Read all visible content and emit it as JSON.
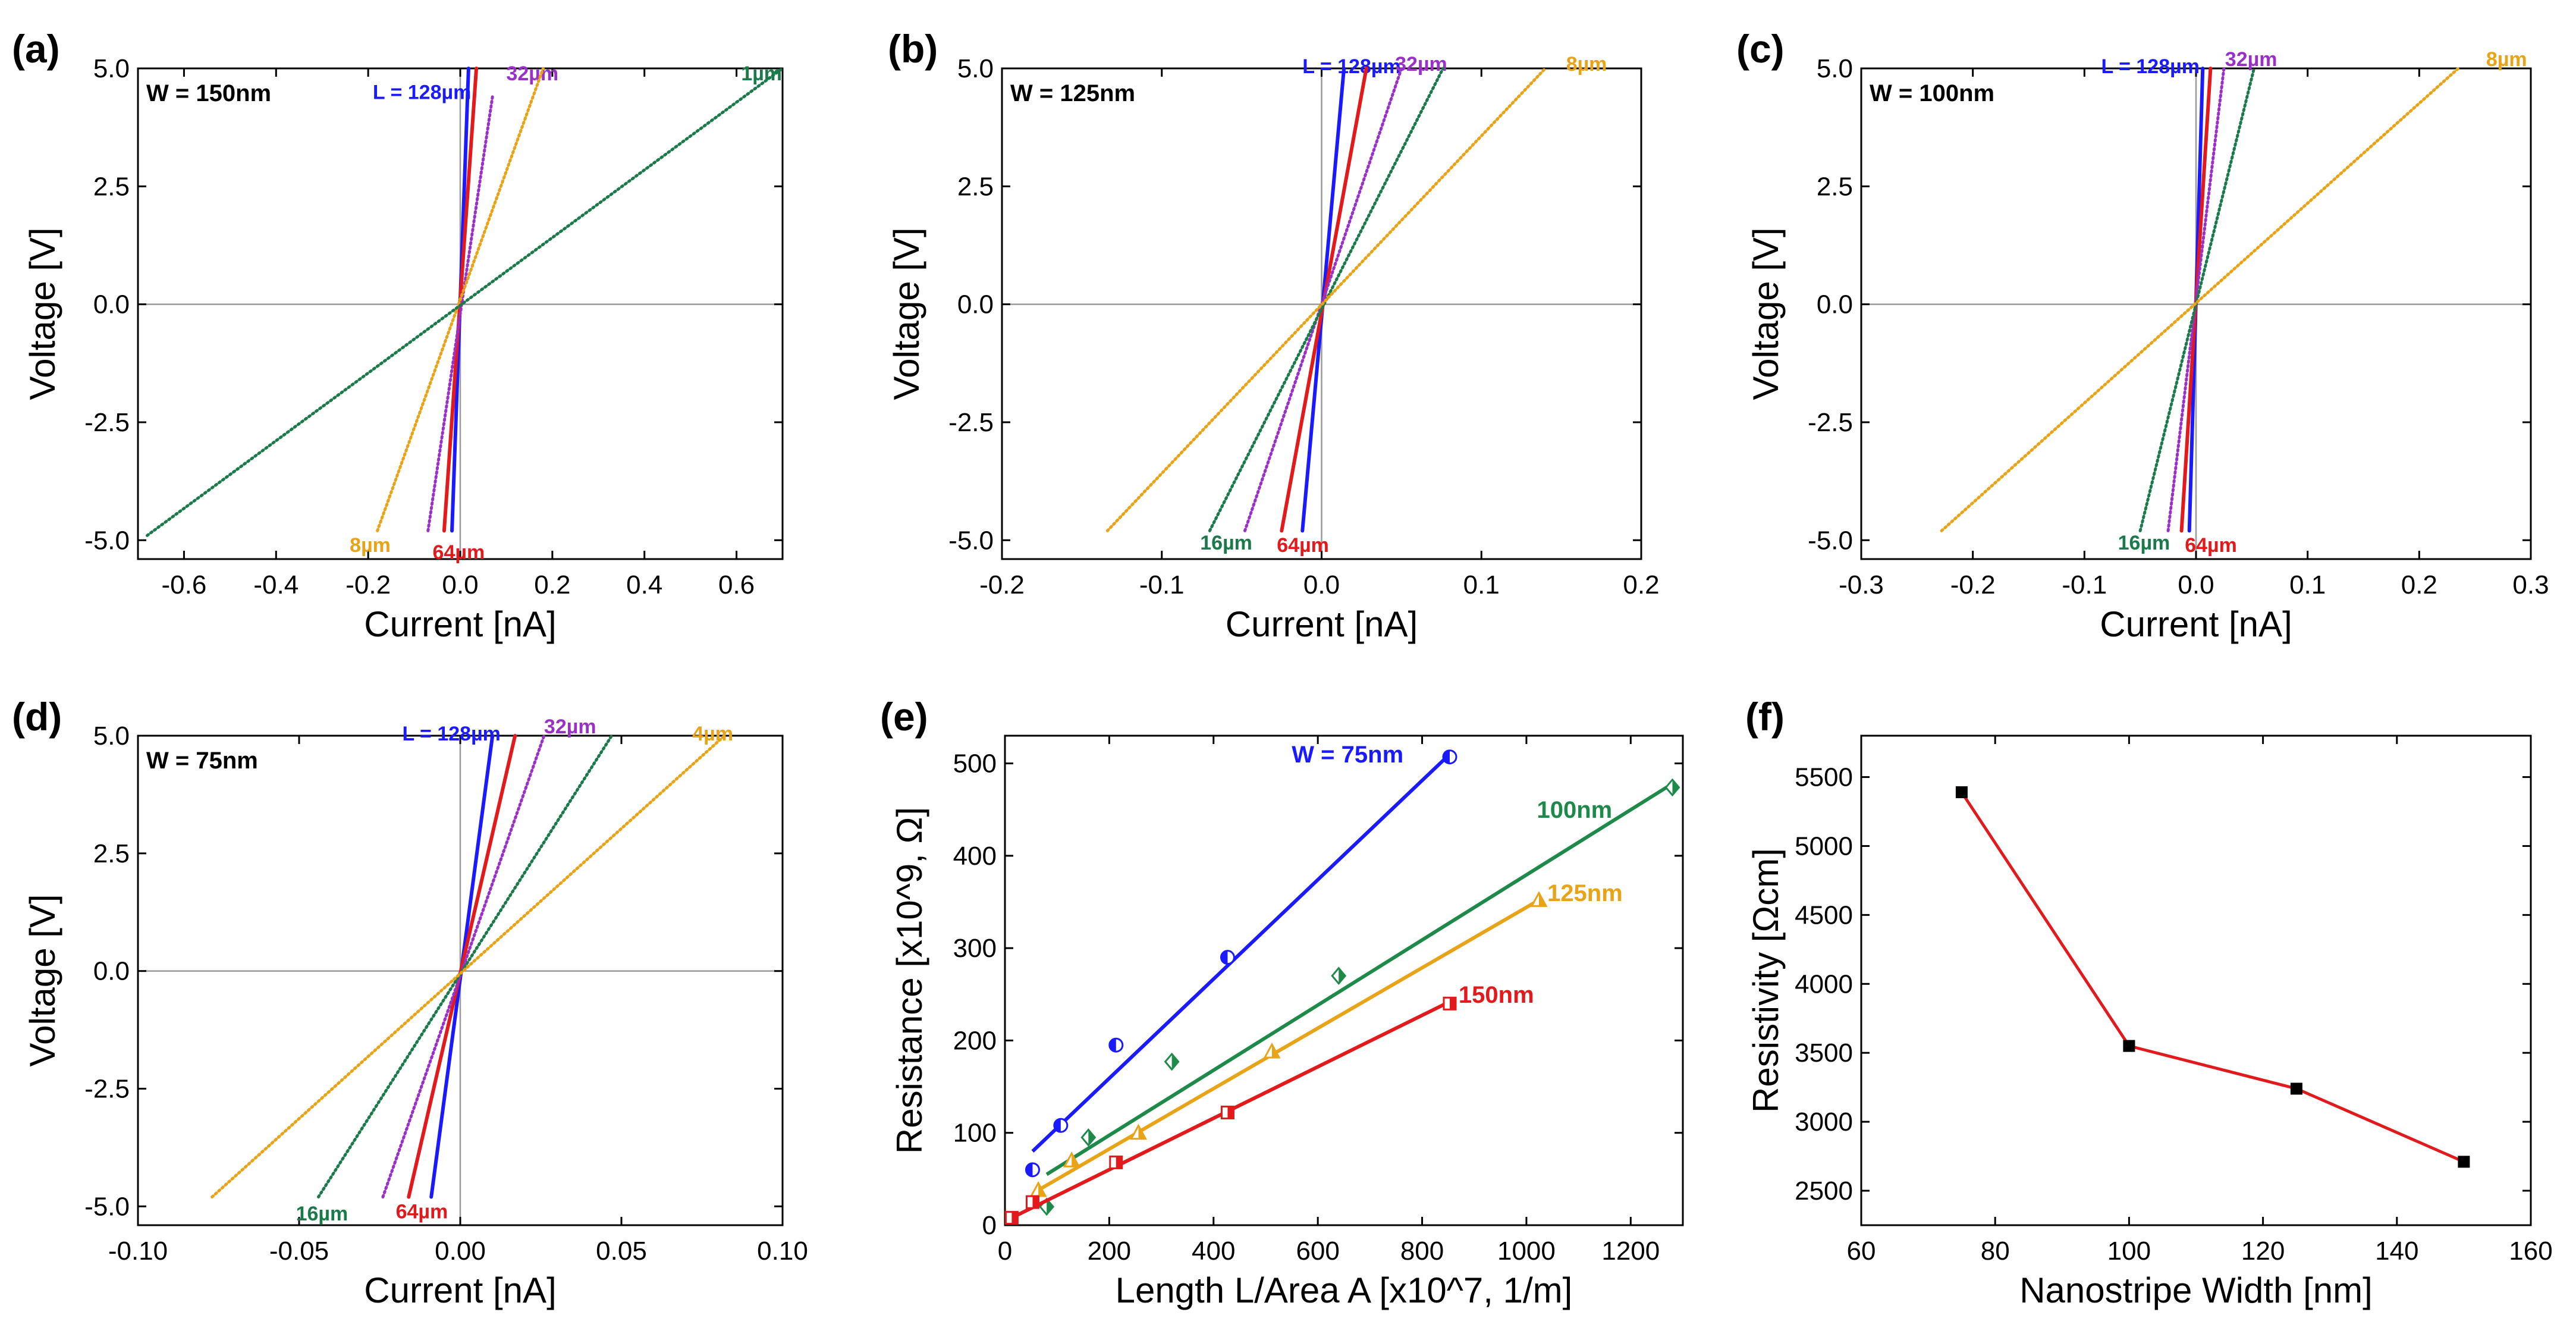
{
  "chart_data": [
    {
      "id": "a",
      "type": "line",
      "panel_label": "(a)",
      "title": "W = 150nm",
      "xlabel": "Current [nA]",
      "ylabel": "Voltage [V]",
      "xlim": [
        -0.7,
        0.7
      ],
      "ylim": [
        -5.4,
        5.0
      ],
      "xticks": [
        -0.6,
        -0.4,
        -0.2,
        0.0,
        0.2,
        0.4,
        0.6
      ],
      "xtick_labels": [
        "-0.6",
        "-0.4",
        "-0.2",
        "0.0",
        "0.2",
        "0.4",
        "0.6"
      ],
      "yticks": [
        -5,
        -2.5,
        0,
        2.5,
        5
      ],
      "ytick_labels": [
        "-5.0",
        "-2.5",
        "0.0",
        "2.5",
        "5.0"
      ],
      "series": [
        {
          "name": "L = 128µm",
          "label": "L = 128µm",
          "color": "#1a1aff",
          "style": "solid",
          "x": [
            -0.018,
            0.018
          ],
          "y": [
            -4.8,
            5.0
          ],
          "label_at": [
            -0.19,
            4.5
          ]
        },
        {
          "name": "64µm",
          "label": "64µm",
          "color": "#e31a1c",
          "style": "solid",
          "x": [
            -0.035,
            0.035
          ],
          "y": [
            -4.8,
            5.0
          ],
          "label_at": [
            -0.06,
            -5.25
          ]
        },
        {
          "name": "32µm",
          "label": "32µm",
          "color": "#9b30c8",
          "style": "dotted",
          "x": [
            -0.07,
            0.07
          ],
          "y": [
            -4.8,
            4.4
          ],
          "label_at": [
            0.1,
            4.9
          ]
        },
        {
          "name": "8µm",
          "label": "8µm",
          "color": "#e8a317",
          "style": "dotted",
          "x": [
            -0.18,
            0.18
          ],
          "y": [
            -4.8,
            5.0
          ],
          "label_at": [
            -0.24,
            -5.1
          ]
        },
        {
          "name": "1µm",
          "label": "1µm",
          "color": "#1a7a4a",
          "style": "dotted",
          "x": [
            -0.68,
            0.7
          ],
          "y": [
            -4.9,
            5.0
          ],
          "label_at": [
            0.61,
            4.9
          ]
        }
      ]
    },
    {
      "id": "b",
      "type": "line",
      "panel_label": "(b)",
      "title": "W = 125nm",
      "xlabel": "Current [nA]",
      "ylabel": "Voltage [V]",
      "xlim": [
        -0.2,
        0.2
      ],
      "ylim": [
        -5.4,
        5.0
      ],
      "xticks": [
        -0.2,
        -0.1,
        0.0,
        0.1,
        0.2
      ],
      "xtick_labels": [
        "-0.2",
        "-0.1",
        "0.0",
        "0.1",
        "0.2"
      ],
      "yticks": [
        -5,
        -2.5,
        0,
        2.5,
        5
      ],
      "ytick_labels": [
        "-5.0",
        "-2.5",
        "0.0",
        "2.5",
        "5.0"
      ],
      "series": [
        {
          "name": "L = 128µm",
          "label": "L = 128µm",
          "color": "#1a1aff",
          "style": "solid",
          "x": [
            -0.012,
            0.014
          ],
          "y": [
            -4.8,
            5.0
          ],
          "label_at": [
            -0.012,
            5.05
          ]
        },
        {
          "name": "64µm",
          "label": "64µm",
          "color": "#e31a1c",
          "style": "solid",
          "x": [
            -0.025,
            0.028
          ],
          "y": [
            -4.8,
            5.0
          ],
          "label_at": [
            -0.028,
            -5.1
          ]
        },
        {
          "name": "32µm",
          "label": "32µm",
          "color": "#9b30c8",
          "style": "dotted",
          "x": [
            -0.048,
            0.05
          ],
          "y": [
            -4.8,
            5.0
          ],
          "label_at": [
            0.046,
            5.1
          ]
        },
        {
          "name": "16µm",
          "label": "16µm",
          "color": "#1a7a4a",
          "style": "dotted",
          "x": [
            -0.07,
            0.076
          ],
          "y": [
            -4.8,
            5.0
          ],
          "label_at": [
            -0.076,
            -5.05
          ]
        },
        {
          "name": "8µm",
          "label": "8µm",
          "color": "#e8a317",
          "style": "dotted",
          "x": [
            -0.134,
            0.14
          ],
          "y": [
            -4.8,
            5.0
          ],
          "label_at": [
            0.153,
            5.1
          ]
        }
      ]
    },
    {
      "id": "c",
      "type": "line",
      "panel_label": "(c)",
      "title": "W = 100nm",
      "xlabel": "Current [nA]",
      "ylabel": "Voltage [V]",
      "xlim": [
        -0.3,
        0.3
      ],
      "ylim": [
        -5.4,
        5.0
      ],
      "xticks": [
        -0.3,
        -0.2,
        -0.1,
        0.0,
        0.1,
        0.2,
        0.3
      ],
      "xtick_labels": [
        "-0.3",
        "-0.2",
        "-0.1",
        "0.0",
        "0.1",
        "0.2",
        "0.3"
      ],
      "yticks": [
        -5,
        -2.5,
        0,
        2.5,
        5
      ],
      "ytick_labels": [
        "-5.0",
        "-2.5",
        "0.0",
        "2.5",
        "5.0"
      ],
      "series": [
        {
          "name": "L = 128µm",
          "label": "L = 128µm",
          "color": "#1a1aff",
          "style": "solid",
          "x": [
            -0.006,
            0.006
          ],
          "y": [
            -4.8,
            5.0
          ],
          "label_at": [
            -0.085,
            5.05
          ]
        },
        {
          "name": "64µm",
          "label": "64µm",
          "color": "#e31a1c",
          "style": "solid",
          "x": [
            -0.013,
            0.013
          ],
          "y": [
            -4.8,
            5.0
          ],
          "label_at": [
            -0.01,
            -5.1
          ]
        },
        {
          "name": "32µm",
          "label": "32µm",
          "color": "#9b30c8",
          "style": "dotted",
          "x": [
            -0.025,
            0.025
          ],
          "y": [
            -4.8,
            5.0
          ],
          "label_at": [
            0.026,
            5.2
          ]
        },
        {
          "name": "16µm",
          "label": "16µm",
          "color": "#1a7a4a",
          "style": "dotted",
          "x": [
            -0.05,
            0.052
          ],
          "y": [
            -4.8,
            5.0
          ],
          "label_at": [
            -0.07,
            -5.05
          ]
        },
        {
          "name": "8µm",
          "label": "8µm",
          "color": "#e8a317",
          "style": "dotted",
          "x": [
            -0.228,
            0.235
          ],
          "y": [
            -4.8,
            5.0
          ],
          "label_at": [
            0.26,
            5.2
          ]
        }
      ]
    },
    {
      "id": "d",
      "type": "line",
      "panel_label": "(d)",
      "title": "W = 75nm",
      "xlabel": "Current [nA]",
      "ylabel": "Voltage [V]",
      "xlim": [
        -0.1,
        0.1
      ],
      "ylim": [
        -5.4,
        5.0
      ],
      "xticks": [
        -0.1,
        -0.05,
        0.0,
        0.05,
        0.1
      ],
      "xtick_labels": [
        "-0.10",
        "-0.05",
        "0.00",
        "0.05",
        "0.10"
      ],
      "yticks": [
        -5,
        -2.5,
        0,
        2.5,
        5
      ],
      "ytick_labels": [
        "-5.0",
        "-2.5",
        "0.0",
        "2.5",
        "5.0"
      ],
      "series": [
        {
          "name": "L = 128µm",
          "label": "L = 128µm",
          "color": "#1a1aff",
          "style": "solid",
          "x": [
            -0.009,
            0.01
          ],
          "y": [
            -4.8,
            5.0
          ],
          "label_at": [
            -0.018,
            5.05
          ]
        },
        {
          "name": "64µm",
          "label": "64µm",
          "color": "#e31a1c",
          "style": "solid",
          "x": [
            -0.016,
            0.017
          ],
          "y": [
            -4.8,
            5.0
          ],
          "label_at": [
            -0.02,
            -5.1
          ]
        },
        {
          "name": "32µm",
          "label": "32µm",
          "color": "#9b30c8",
          "style": "dotted",
          "x": [
            -0.024,
            0.026
          ],
          "y": [
            -4.8,
            5.0
          ],
          "label_at": [
            0.026,
            5.2
          ]
        },
        {
          "name": "16µm",
          "label": "16µm",
          "color": "#1a7a4a",
          "style": "dotted",
          "x": [
            -0.044,
            0.047
          ],
          "y": [
            -4.8,
            5.0
          ],
          "label_at": [
            -0.051,
            -5.15
          ]
        },
        {
          "name": "4µm",
          "label": "4µm",
          "color": "#e8a317",
          "style": "dotted",
          "x": [
            -0.077,
            0.082
          ],
          "y": [
            -4.8,
            5.0
          ],
          "label_at": [
            0.072,
            5.05
          ]
        }
      ]
    },
    {
      "id": "e",
      "type": "scatter",
      "panel_label": "(e)",
      "xlabel": "Length L/Area A [x10^7, 1/m]",
      "ylabel": "Resistance [x10^9, Ω]",
      "xlim": [
        0,
        1300
      ],
      "ylim": [
        0,
        530
      ],
      "xticks": [
        0,
        200,
        400,
        600,
        800,
        1000,
        1200
      ],
      "xtick_labels": [
        "0",
        "200",
        "400",
        "600",
        "800",
        "1000",
        "1200"
      ],
      "yticks": [
        0,
        100,
        200,
        300,
        400,
        500
      ],
      "ytick_labels": [
        "0",
        "100",
        "200",
        "300",
        "400",
        "500"
      ],
      "series": [
        {
          "name": "W = 75nm",
          "label": "W = 75nm",
          "color": "#1a1aff",
          "marker": "circle",
          "x": [
            53,
            107,
            213,
            427,
            853
          ],
          "y": [
            60,
            108,
            195,
            290,
            507
          ],
          "fit": [
            [
              53,
              80
            ],
            [
              853,
              510
            ]
          ],
          "label_at": [
            550,
            510
          ]
        },
        {
          "name": "100nm",
          "label": "100nm",
          "color": "#1e8a4a",
          "marker": "diamond",
          "x": [
            80,
            160,
            320,
            640,
            1280
          ],
          "y": [
            20,
            95,
            177,
            270,
            474
          ],
          "fit": [
            [
              80,
              55
            ],
            [
              1280,
              478
            ]
          ],
          "label_at": [
            1020,
            450
          ]
        },
        {
          "name": "125nm",
          "label": "125nm",
          "color": "#e8a317",
          "marker": "triangle",
          "x": [
            64,
            128,
            256,
            512,
            1024
          ],
          "y": [
            38,
            70,
            100,
            188,
            352
          ],
          "fit": [
            [
              64,
              38
            ],
            [
              1024,
              352
            ]
          ],
          "label_at": [
            1040,
            360
          ]
        },
        {
          "name": "150nm",
          "label": "150nm",
          "color": "#e31a1c",
          "marker": "square",
          "x": [
            13,
            53,
            213,
            427,
            853
          ],
          "y": [
            8,
            25,
            68,
            122,
            240
          ],
          "fit": [
            [
              13,
              8
            ],
            [
              853,
              242
            ]
          ],
          "label_at": [
            870,
            250
          ]
        }
      ]
    },
    {
      "id": "f",
      "type": "line",
      "panel_label": "(f)",
      "xlabel": "Nanostripe Width [nm]",
      "ylabel": "Resistivity [Ωcm]",
      "xlim": [
        60,
        160
      ],
      "ylim": [
        2250,
        5800
      ],
      "xticks": [
        60,
        80,
        100,
        120,
        140,
        160
      ],
      "xtick_labels": [
        "60",
        "80",
        "100",
        "120",
        "140",
        "160"
      ],
      "yticks": [
        2500,
        3000,
        3500,
        4000,
        4500,
        5000,
        5500
      ],
      "ytick_labels": [
        "2500",
        "3000",
        "3500",
        "4000",
        "4500",
        "5000",
        "5500"
      ],
      "series": [
        {
          "name": "Resistivity",
          "color": "#e31a1c",
          "marker": "square",
          "x": [
            75,
            100,
            125,
            150
          ],
          "y": [
            5390,
            3550,
            3240,
            2710
          ]
        }
      ]
    }
  ]
}
